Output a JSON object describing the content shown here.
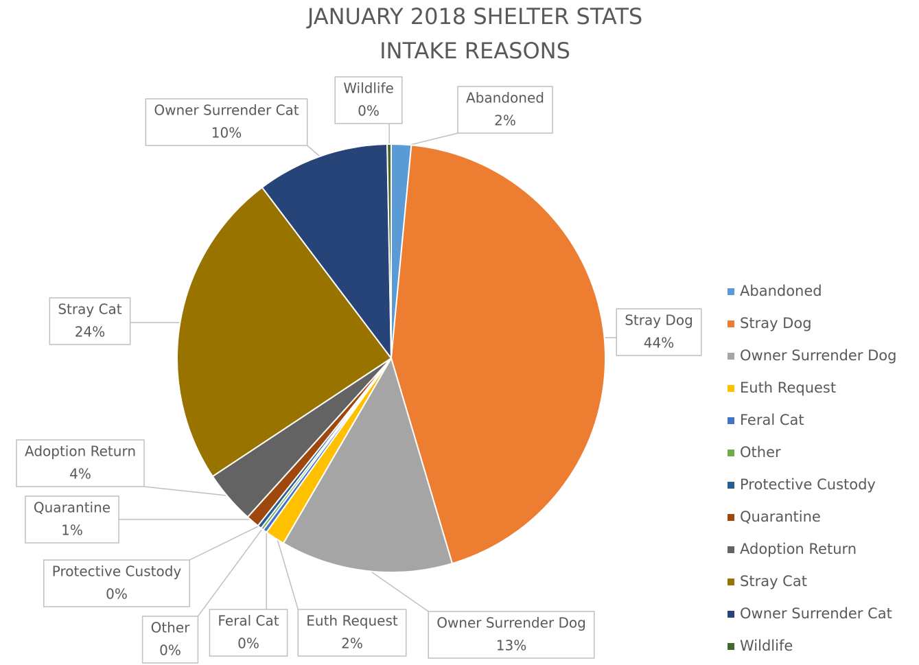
{
  "chart_data": {
    "type": "pie",
    "title": "JANUARY 2018 SHELTER STATS",
    "subtitle": "INTAKE REASONS",
    "categories": [
      "Abandoned",
      "Stray Dog",
      "Owner Surrender Dog",
      "Euth Request",
      "Feral Cat",
      "Other",
      "Protective Custody",
      "Quarantine",
      "Adoption Return",
      "Stray Cat",
      "Owner Surrender Cat",
      "Wildlife"
    ],
    "values": [
      1.5,
      43.9,
      13,
      1.5,
      0.3,
      0.2,
      0.3,
      1,
      4,
      24,
      10,
      0.3
    ],
    "value_labels": [
      "2%",
      "44%",
      "13%",
      "2%",
      "0%",
      "0%",
      "0%",
      "1%",
      "4%",
      "24%",
      "10%",
      "0%"
    ],
    "colors": [
      "#5b9bd5",
      "#ed7d31",
      "#a5a5a5",
      "#ffc000",
      "#4472c4",
      "#70ad47",
      "#255e91",
      "#9e480e",
      "#636363",
      "#997300",
      "#264478",
      "#43682b"
    ],
    "legend": "right"
  }
}
